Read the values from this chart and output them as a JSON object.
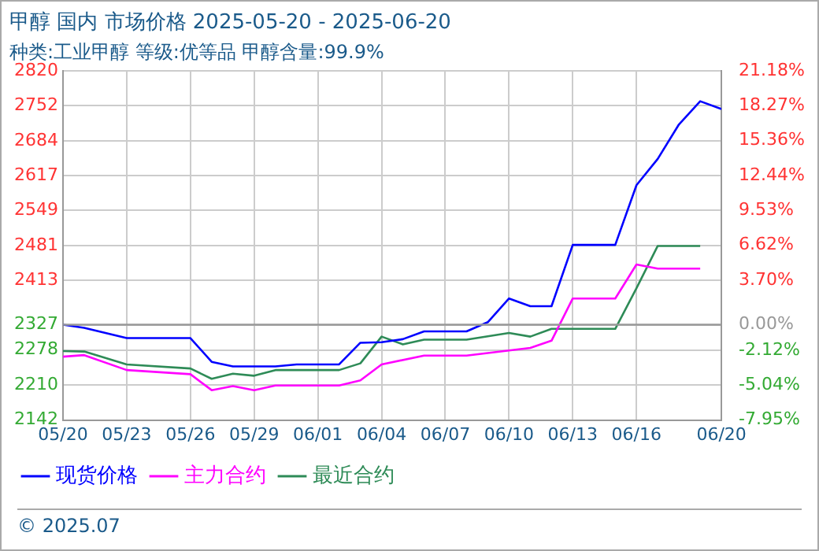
{
  "chart_data": {
    "type": "line",
    "title": "甲醇 国内 市场价格 2025-05-20 - 2025-06-20",
    "subtitle": "种类:工业甲醇 等级:优等品 甲醇含量:99.9%",
    "annotations": [
      "© 2025.07"
    ],
    "xlim": [
      "2025-05-20",
      "2025-06-20"
    ],
    "xticks": [
      {
        "value": "2025-05-20",
        "label": "05/20"
      },
      {
        "value": "2025-05-23",
        "label": "05/23"
      },
      {
        "value": "2025-05-26",
        "label": "05/26"
      },
      {
        "value": "2025-05-29",
        "label": "05/29"
      },
      {
        "value": "2025-06-01",
        "label": "06/01"
      },
      {
        "value": "2025-06-04",
        "label": "06/04"
      },
      {
        "value": "2025-06-07",
        "label": "06/07"
      },
      {
        "value": "2025-06-10",
        "label": "06/10"
      },
      {
        "value": "2025-06-13",
        "label": "06/13"
      },
      {
        "value": "2025-06-16",
        "label": "06/16"
      },
      {
        "value": "2025-06-20",
        "label": "06/20"
      }
    ],
    "ylim": [
      2142,
      2820
    ],
    "yticks": [
      2142,
      2210,
      2278,
      2327,
      2413,
      2481,
      2549,
      2617,
      2684,
      2752,
      2820
    ],
    "y2lim": [
      -7.95,
      21.18
    ],
    "y2ticks": [
      {
        "value": -7.95,
        "label": "-7.95%"
      },
      {
        "value": -5.04,
        "label": "-5.04%"
      },
      {
        "value": -2.12,
        "label": "-2.12%"
      },
      {
        "value": 0,
        "label": "0.00%"
      },
      {
        "value": 3.7,
        "label": "3.70%"
      },
      {
        "value": 6.62,
        "label": "6.62%"
      },
      {
        "value": 9.53,
        "label": "9.53%"
      },
      {
        "value": 12.44,
        "label": "12.44%"
      },
      {
        "value": 15.36,
        "label": "15.36%"
      },
      {
        "value": 18.27,
        "label": "18.27%"
      },
      {
        "value": 21.18,
        "label": "21.18%"
      }
    ],
    "ref_lines": [
      {
        "axis": "y2",
        "value": 0,
        "label": null,
        "color": "#999999"
      }
    ],
    "grid": true,
    "legend": "bottom left",
    "marker": "none",
    "line_style": "solid",
    "series": [
      {
        "name": "现货价格",
        "color": "#0000ff",
        "x": [
          "2025-05-20",
          "2025-05-21",
          "2025-05-23",
          "2025-05-26",
          "2025-05-27",
          "2025-05-28",
          "2025-05-30",
          "2025-05-31",
          "2025-06-02",
          "2025-06-03",
          "2025-06-04",
          "2025-06-05",
          "2025-06-06",
          "2025-06-08",
          "2025-06-09",
          "2025-06-10",
          "2025-06-11",
          "2025-06-12",
          "2025-06-13",
          "2025-06-15",
          "2025-06-16",
          "2025-06-17",
          "2025-06-18",
          "2025-06-19",
          "2025-06-20"
        ],
        "values": [
          2327,
          2321,
          2301,
          2301,
          2255,
          2246,
          2246,
          2250,
          2250,
          2292,
          2293,
          2299,
          2314,
          2314,
          2332,
          2378,
          2363,
          2363,
          2482,
          2482,
          2598,
          2649,
          2716,
          2761,
          2746
        ]
      },
      {
        "name": "主力合约",
        "color": "#ff00ff",
        "x": [
          "2025-05-20",
          "2025-05-21",
          "2025-05-23",
          "2025-05-26",
          "2025-05-27",
          "2025-05-28",
          "2025-05-29",
          "2025-05-30",
          "2025-06-02",
          "2025-06-03",
          "2025-06-04",
          "2025-06-06",
          "2025-06-08",
          "2025-06-10",
          "2025-06-11",
          "2025-06-12",
          "2025-06-13",
          "2025-06-15",
          "2025-06-16",
          "2025-06-17",
          "2025-06-19"
        ],
        "values": [
          2265,
          2268,
          2239,
          2231,
          2200,
          2208,
          2200,
          2209,
          2209,
          2219,
          2250,
          2267,
          2267,
          2277,
          2282,
          2296,
          2378,
          2378,
          2444,
          2436,
          2436
        ]
      },
      {
        "name": "最近合约",
        "color": "#2e8b57",
        "x": [
          "2025-05-20",
          "2025-05-21",
          "2025-05-23",
          "2025-05-26",
          "2025-05-27",
          "2025-05-28",
          "2025-05-29",
          "2025-05-30",
          "2025-06-02",
          "2025-06-03",
          "2025-06-04",
          "2025-06-05",
          "2025-06-06",
          "2025-06-08",
          "2025-06-10",
          "2025-06-11",
          "2025-06-12",
          "2025-06-15",
          "2025-06-16",
          "2025-06-17",
          "2025-06-19"
        ],
        "values": [
          2276,
          2275,
          2250,
          2242,
          2222,
          2232,
          2228,
          2239,
          2239,
          2252,
          2304,
          2289,
          2298,
          2298,
          2311,
          2304,
          2319,
          2319,
          2398,
          2480,
          2480
        ]
      }
    ]
  }
}
